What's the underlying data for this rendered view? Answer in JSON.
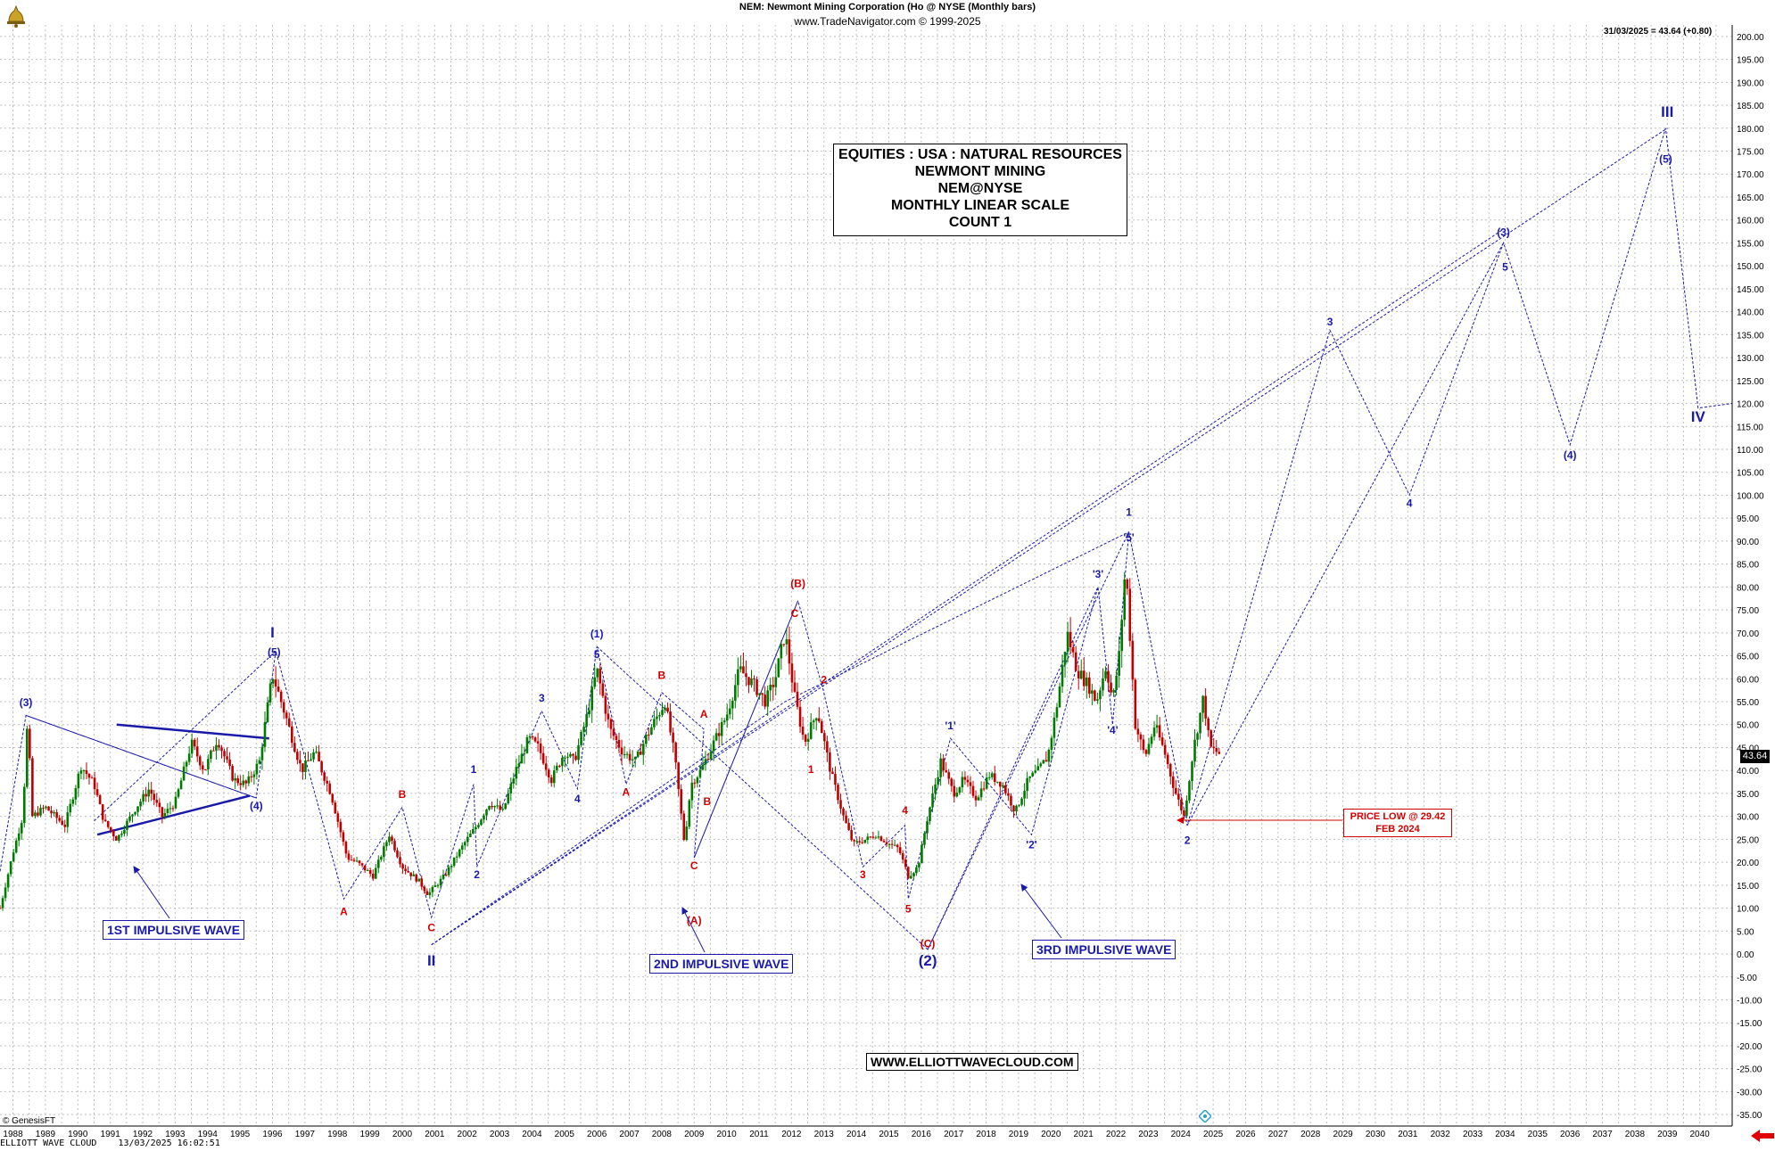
{
  "header": {
    "title": "NEM:  Newmont Mining Corporation (Ho @ NYSE  (Monthly bars)",
    "subtitle": "www.TradeNavigator.com © 1999-2025",
    "last_price_label": "31/03/2025 = 43.64 (+0.80)",
    "price_tag": "43.64"
  },
  "info_box": {
    "lines": [
      "EQUITIES : USA : NATURAL RESOURCES",
      "NEWMONT MINING",
      "NEM@NYSE",
      "MONTHLY LINEAR SCALE",
      "COUNT 1"
    ]
  },
  "callouts": {
    "first": "1ST IMPULSIVE WAVE",
    "second": "2ND IMPULSIVE WAVE",
    "third": "3RD IMPULSIVE WAVE",
    "price_low_1": "PRICE LOW @ 29.42",
    "price_low_2": "FEB 2024",
    "website": "WWW.ELLIOTTWAVECLOUD.COM"
  },
  "footer": {
    "left": "ELLIOTT WAVE CLOUD    13/03/2025 16:02:51",
    "genesis": "© GenesisFT"
  },
  "colors": {
    "bull": "#007a00",
    "bear": "#c00000",
    "wave_blue": "#1a1aa8",
    "wave_red": "#d00000",
    "grid": "#bfbfbf"
  },
  "chart_data": {
    "type": "candlestick",
    "x_range": [
      1987.6,
      2041.0
    ],
    "ylim": [
      -37.5,
      202.5
    ],
    "y_ticks": [
      -35,
      -30,
      -25,
      -20,
      -15,
      -10,
      -5,
      0,
      5,
      10,
      15,
      20,
      25,
      30,
      35,
      40,
      45,
      50,
      55,
      60,
      65,
      70,
      75,
      80,
      85,
      90,
      95,
      100,
      105,
      110,
      115,
      120,
      125,
      130,
      135,
      140,
      145,
      150,
      155,
      160,
      165,
      170,
      175,
      180,
      185,
      190,
      195,
      200
    ],
    "x_ticks": [
      1988,
      1989,
      1990,
      1991,
      1992,
      1993,
      1994,
      1995,
      1996,
      1997,
      1998,
      1999,
      2000,
      2001,
      2002,
      2003,
      2004,
      2005,
      2006,
      2007,
      2008,
      2009,
      2010,
      2011,
      2012,
      2013,
      2014,
      2015,
      2016,
      2017,
      2018,
      2019,
      2020,
      2021,
      2022,
      2023,
      2024,
      2025,
      2026,
      2027,
      2028,
      2029,
      2030,
      2031,
      2032,
      2033,
      2034,
      2035,
      2036,
      2037,
      2038,
      2039,
      2040
    ],
    "price_path": [
      [
        1987.6,
        10
      ],
      [
        1988.0,
        22
      ],
      [
        1988.3,
        30
      ],
      [
        1988.45,
        51
      ],
      [
        1988.6,
        30
      ],
      [
        1989.0,
        32
      ],
      [
        1989.6,
        28
      ],
      [
        1990.1,
        41
      ],
      [
        1990.5,
        37
      ],
      [
        1990.8,
        29
      ],
      [
        1991.2,
        25
      ],
      [
        1991.8,
        32
      ],
      [
        1992.2,
        36
      ],
      [
        1992.6,
        30
      ],
      [
        1993.0,
        33
      ],
      [
        1993.5,
        46
      ],
      [
        1993.9,
        40
      ],
      [
        1994.3,
        47
      ],
      [
        1994.8,
        38
      ],
      [
        1995.2,
        37
      ],
      [
        1995.6,
        42
      ],
      [
        1996.0,
        61
      ],
      [
        1996.4,
        52
      ],
      [
        1996.9,
        40
      ],
      [
        1997.3,
        44
      ],
      [
        1997.8,
        35
      ],
      [
        1998.3,
        21
      ],
      [
        1998.6,
        20
      ],
      [
        1999.1,
        17
      ],
      [
        1999.6,
        26
      ],
      [
        2000.0,
        19
      ],
      [
        2000.5,
        16
      ],
      [
        2000.8,
        13
      ],
      [
        2001.3,
        17
      ],
      [
        2001.9,
        24
      ],
      [
        2002.3,
        28
      ],
      [
        2002.7,
        33
      ],
      [
        2003.1,
        31
      ],
      [
        2003.5,
        40
      ],
      [
        2003.9,
        47
      ],
      [
        2004.2,
        45
      ],
      [
        2004.6,
        38
      ],
      [
        2005.0,
        44
      ],
      [
        2005.3,
        42
      ],
      [
        2005.7,
        52
      ],
      [
        2006.0,
        62
      ],
      [
        2006.4,
        49
      ],
      [
        2006.8,
        44
      ],
      [
        2007.2,
        42
      ],
      [
        2007.5,
        47
      ],
      [
        2007.8,
        51
      ],
      [
        2008.1,
        55
      ],
      [
        2008.4,
        43
      ],
      [
        2008.7,
        24
      ],
      [
        2008.9,
        37
      ],
      [
        2009.2,
        40
      ],
      [
        2009.6,
        46
      ],
      [
        2010.0,
        52
      ],
      [
        2010.4,
        62
      ],
      [
        2010.8,
        59
      ],
      [
        2011.2,
        55
      ],
      [
        2011.5,
        60
      ],
      [
        2011.8,
        70
      ],
      [
        2012.1,
        56
      ],
      [
        2012.4,
        46
      ],
      [
        2012.8,
        53
      ],
      [
        2013.2,
        40
      ],
      [
        2013.6,
        30
      ],
      [
        2013.9,
        24
      ],
      [
        2014.3,
        25
      ],
      [
        2014.6,
        26
      ],
      [
        2015.0,
        24
      ],
      [
        2015.3,
        23
      ],
      [
        2015.6,
        17
      ],
      [
        2015.9,
        19
      ],
      [
        2016.2,
        30
      ],
      [
        2016.6,
        42
      ],
      [
        2017.0,
        35
      ],
      [
        2017.3,
        38
      ],
      [
        2017.7,
        34
      ],
      [
        2018.1,
        39
      ],
      [
        2018.5,
        37
      ],
      [
        2018.9,
        31
      ],
      [
        2019.3,
        38
      ],
      [
        2019.6,
        40
      ],
      [
        2019.9,
        43
      ],
      [
        2020.2,
        55
      ],
      [
        2020.5,
        70
      ],
      [
        2020.8,
        62
      ],
      [
        2021.2,
        58
      ],
      [
        2021.4,
        55
      ],
      [
        2021.7,
        63
      ],
      [
        2021.9,
        55
      ],
      [
        2022.1,
        65
      ],
      [
        2022.3,
        85
      ],
      [
        2022.6,
        50
      ],
      [
        2022.9,
        43
      ],
      [
        2023.2,
        50
      ],
      [
        2023.5,
        44
      ],
      [
        2023.8,
        36
      ],
      [
        2024.1,
        30
      ],
      [
        2024.4,
        45
      ],
      [
        2024.7,
        56
      ],
      [
        2024.9,
        45
      ],
      [
        2025.2,
        43.64
      ]
    ],
    "last_value": 43.64,
    "annotations": {
      "wave_labels_blue": [
        {
          "text": "(3)",
          "x": 1988.4,
          "y": 54
        },
        {
          "text": "(5)",
          "x": 1996.05,
          "y": 65
        },
        {
          "text": "(4)",
          "x": 1995.5,
          "y": 31.5
        },
        {
          "text": "1",
          "x": 2002.2,
          "y": 39.5
        },
        {
          "text": "2",
          "x": 2002.3,
          "y": 16.5
        },
        {
          "text": "3",
          "x": 2004.3,
          "y": 55
        },
        {
          "text": "4",
          "x": 2005.4,
          "y": 33
        },
        {
          "text": "(1)",
          "x": 2006.0,
          "y": 69
        },
        {
          "text": "5",
          "x": 2006.0,
          "y": 64.5
        },
        {
          "text": "'1'",
          "x": 2016.9,
          "y": 49
        },
        {
          "text": "'2'",
          "x": 2019.4,
          "y": 23
        },
        {
          "text": "'3'",
          "x": 2021.45,
          "y": 82
        },
        {
          "text": "'4'",
          "x": 2021.9,
          "y": 48
        },
        {
          "text": "'5'",
          "x": 2022.4,
          "y": 90
        },
        {
          "text": "1",
          "x": 2022.4,
          "y": 95.5
        },
        {
          "text": "2",
          "x": 2024.2,
          "y": 24
        },
        {
          "text": "3",
          "x": 2028.6,
          "y": 137
        },
        {
          "text": "4",
          "x": 2031.05,
          "y": 97.5
        },
        {
          "text": "(3)",
          "x": 2033.95,
          "y": 156.5
        },
        {
          "text": "5",
          "x": 2034.0,
          "y": 149
        },
        {
          "text": "(4)",
          "x": 2036.0,
          "y": 108
        },
        {
          "text": "(5)",
          "x": 2038.95,
          "y": 172.5
        }
      ],
      "wave_labels_blue_large": [
        {
          "text": "I",
          "x": 1996.0,
          "y": 69
        },
        {
          "text": "II",
          "x": 2000.9,
          "y": -2.5
        },
        {
          "text": "(2)",
          "x": 2016.2,
          "y": -2.5
        },
        {
          "text": "III",
          "x": 2039.0,
          "y": 182.5
        },
        {
          "text": "IV",
          "x": 2039.95,
          "y": 116
        }
      ],
      "wave_labels_red": [
        {
          "text": "A",
          "x": 1998.2,
          "y": 8.5
        },
        {
          "text": "B",
          "x": 2000.0,
          "y": 34
        },
        {
          "text": "C",
          "x": 2000.9,
          "y": 5
        },
        {
          "text": "A",
          "x": 2006.9,
          "y": 34.5
        },
        {
          "text": "B",
          "x": 2008.0,
          "y": 60
        },
        {
          "text": "A",
          "x": 2009.3,
          "y": 51.5
        },
        {
          "text": "B",
          "x": 2009.4,
          "y": 32.5
        },
        {
          "text": "C",
          "x": 2009.0,
          "y": 18.5
        },
        {
          "text": "(A)",
          "x": 2009.0,
          "y": 6.5
        },
        {
          "text": "C",
          "x": 2012.1,
          "y": 73.5
        },
        {
          "text": "(B)",
          "x": 2012.2,
          "y": 80
        },
        {
          "text": "2",
          "x": 2013.0,
          "y": 59
        },
        {
          "text": "1",
          "x": 2012.6,
          "y": 39.5
        },
        {
          "text": "3",
          "x": 2014.2,
          "y": 16.5
        },
        {
          "text": "4",
          "x": 2015.5,
          "y": 30.5
        },
        {
          "text": "5",
          "x": 2015.6,
          "y": 9
        },
        {
          "text": "(C)",
          "x": 2016.2,
          "y": 1.5
        }
      ],
      "dashed_lines": [
        [
          [
            1987.6,
            18
          ],
          [
            1988.4,
            52
          ],
          [
            1995.5,
            34
          ],
          [
            1996.1,
            66
          ],
          [
            1998.2,
            12
          ],
          [
            2000.0,
            32
          ],
          [
            2000.9,
            8
          ],
          [
            2002.2,
            37
          ],
          [
            2002.3,
            19
          ],
          [
            2004.3,
            53
          ],
          [
            2005.4,
            36
          ],
          [
            2006.0,
            67
          ],
          [
            2006.9,
            37
          ],
          [
            2008.0,
            57
          ],
          [
            2009.3,
            49
          ],
          [
            2009.0,
            21
          ],
          [
            2012.2,
            77
          ],
          [
            2013.0,
            57
          ],
          [
            2014.2,
            19
          ],
          [
            2015.5,
            28
          ],
          [
            2015.6,
            12
          ],
          [
            2016.9,
            47
          ],
          [
            2019.4,
            26
          ],
          [
            2021.45,
            80
          ],
          [
            2021.9,
            50
          ],
          [
            2022.4,
            92
          ],
          [
            2024.2,
            28
          ],
          [
            2028.6,
            136
          ],
          [
            2031.05,
            100
          ],
          [
            2033.95,
            155
          ],
          [
            2036.0,
            111
          ],
          [
            2038.95,
            180
          ],
          [
            2039.95,
            119
          ],
          [
            2041.0,
            120
          ]
        ],
        [
          [
            1988.4,
            52
          ],
          [
            1995.5,
            34
          ]
        ],
        [
          [
            1990.5,
            29
          ],
          [
            1996.1,
            66
          ]
        ],
        [
          [
            2000.9,
            2
          ],
          [
            2011.8,
            55
          ],
          [
            2022.4,
            92
          ]
        ],
        [
          [
            2000.9,
            2
          ],
          [
            2033.95,
            158
          ]
        ],
        [
          [
            2000.9,
            2
          ],
          [
            2039.0,
            180
          ]
        ],
        [
          [
            2006.0,
            67
          ],
          [
            2016.2,
            1
          ],
          [
            2022.4,
            92
          ]
        ],
        [
          [
            2009.0,
            21
          ],
          [
            2012.2,
            77
          ]
        ],
        [
          [
            2016.2,
            1
          ],
          [
            2021.45,
            80
          ]
        ],
        [
          [
            2024.2,
            28
          ],
          [
            2033.95,
            155
          ]
        ]
      ],
      "solid_lines": [
        [
          [
            1991.2,
            50
          ],
          [
            1995.9,
            47
          ]
        ],
        [
          [
            1990.6,
            26
          ],
          [
            1995.3,
            34.5
          ]
        ]
      ]
    }
  }
}
